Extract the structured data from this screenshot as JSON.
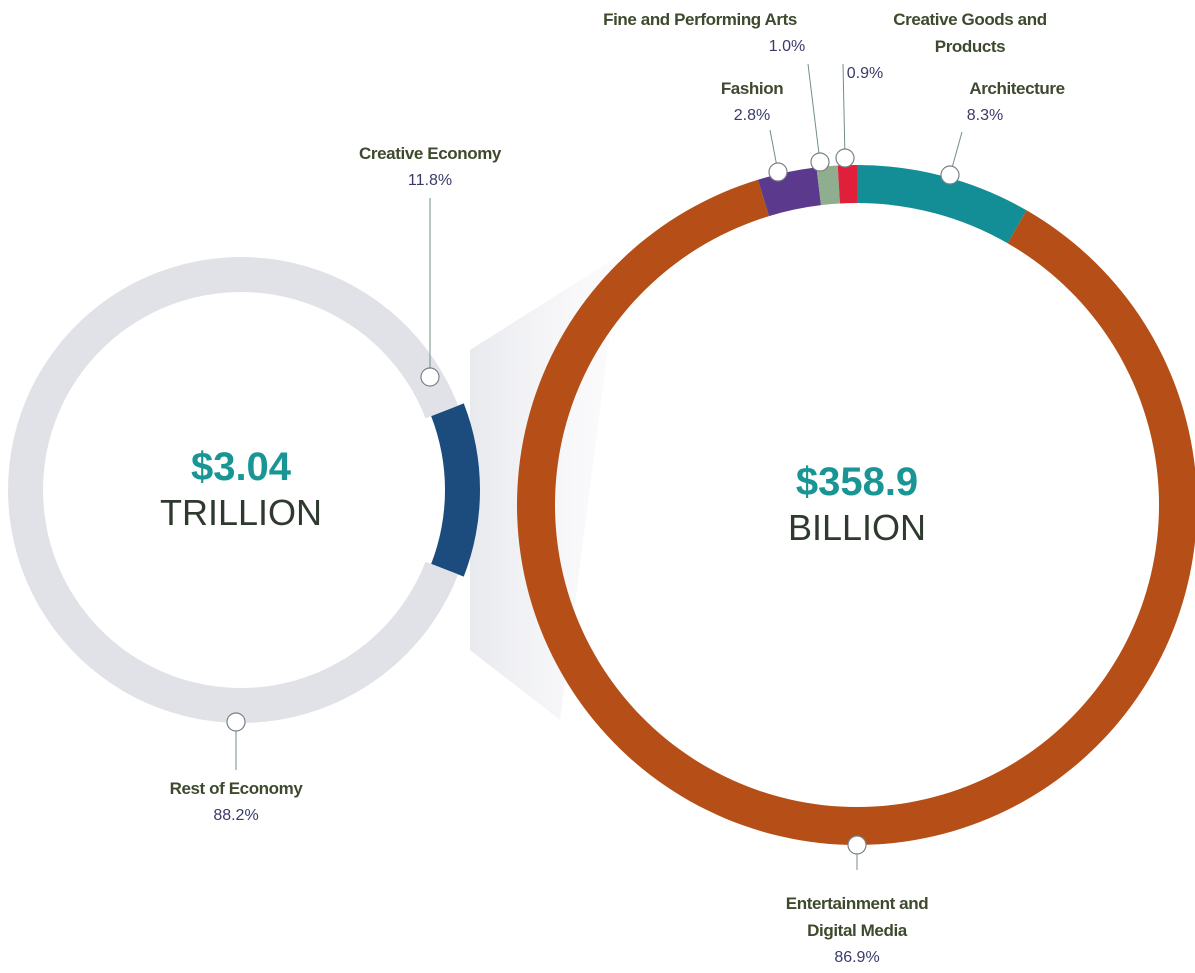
{
  "chart_data": [
    {
      "type": "pie",
      "center_value": "$3.04",
      "center_label": "TRILLION",
      "categories": [
        "Creative Economy",
        "Rest of Economy"
      ],
      "values": [
        11.8,
        88.2
      ],
      "value_labels": [
        "11.8%",
        "88.2%"
      ],
      "colors": [
        "#1b4c7d",
        "#e1e2e7"
      ]
    },
    {
      "type": "pie",
      "center_value": "$358.9",
      "center_label": "BILLION",
      "categories": [
        "Architecture",
        "Entertainment and Digital Media",
        "Fashion",
        "Fine and Performing Arts",
        "Creative Goods and Products"
      ],
      "values": [
        8.3,
        86.9,
        2.8,
        1.0,
        0.9
      ],
      "value_labels": [
        "8.3%",
        "86.9%",
        "2.8%",
        "1.0%",
        "0.9%"
      ],
      "colors": [
        "#138e96",
        "#b54f17",
        "#5b3a8e",
        "#8fae8f",
        "#e0203a"
      ]
    }
  ]
}
